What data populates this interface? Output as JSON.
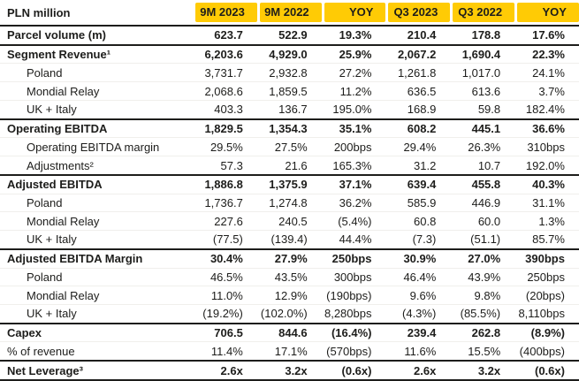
{
  "colors": {
    "accent_yellow": "#FFCB05",
    "text": "#1D1D1B",
    "section_line": "#1D1D1B"
  },
  "table": {
    "header": {
      "label": "PLN million",
      "columns": [
        "9M 2023",
        "9M 2022",
        "YOY",
        "Q3 2023",
        "Q3 2022",
        "YOY"
      ]
    },
    "rows": [
      {
        "label": "Parcel volume (m)",
        "values": [
          "623.7",
          "522.9",
          "19.3%",
          "210.4",
          "178.8",
          "17.6%"
        ]
      },
      {
        "label": "Segment Revenue¹",
        "values": [
          "6,203.6",
          "4,929.0",
          "25.9%",
          "2,067.2",
          "1,690.4",
          "22.3%"
        ]
      },
      {
        "label": "Poland",
        "values": [
          "3,731.7",
          "2,932.8",
          "27.2%",
          "1,261.8",
          "1,017.0",
          "24.1%"
        ]
      },
      {
        "label": "Mondial Relay",
        "values": [
          "2,068.6",
          "1,859.5",
          "11.2%",
          "636.5",
          "613.6",
          "3.7%"
        ]
      },
      {
        "label": "UK + Italy",
        "values": [
          "403.3",
          "136.7",
          "195.0%",
          "168.9",
          "59.8",
          "182.4%"
        ]
      },
      {
        "label": "Operating EBITDA",
        "values": [
          "1,829.5",
          "1,354.3",
          "35.1%",
          "608.2",
          "445.1",
          "36.6%"
        ]
      },
      {
        "label": "Operating EBITDA margin",
        "values": [
          "29.5%",
          "27.5%",
          "200bps",
          "29.4%",
          "26.3%",
          "310bps"
        ]
      },
      {
        "label": "Adjustments²",
        "values": [
          "57.3",
          "21.6",
          "165.3%",
          "31.2",
          "10.7",
          "192.0%"
        ]
      },
      {
        "label": "Adjusted EBITDA",
        "values": [
          "1,886.8",
          "1,375.9",
          "37.1%",
          "639.4",
          "455.8",
          "40.3%"
        ]
      },
      {
        "label": "Poland",
        "values": [
          "1,736.7",
          "1,274.8",
          "36.2%",
          "585.9",
          "446.9",
          "31.1%"
        ]
      },
      {
        "label": "Mondial Relay",
        "values": [
          "227.6",
          "240.5",
          "(5.4%)",
          "60.8",
          "60.0",
          "1.3%"
        ]
      },
      {
        "label": "UK + Italy",
        "values": [
          "(77.5)",
          "(139.4)",
          "44.4%",
          "(7.3)",
          "(51.1)",
          "85.7%"
        ]
      },
      {
        "label": "Adjusted EBITDA Margin",
        "values": [
          "30.4%",
          "27.9%",
          "250bps",
          "30.9%",
          "27.0%",
          "390bps"
        ]
      },
      {
        "label": "Poland",
        "values": [
          "46.5%",
          "43.5%",
          "300bps",
          "46.4%",
          "43.9%",
          "250bps"
        ]
      },
      {
        "label": "Mondial Relay",
        "values": [
          "11.0%",
          "12.9%",
          "(190bps)",
          "9.6%",
          "9.8%",
          "(20bps)"
        ]
      },
      {
        "label": "UK + Italy",
        "values": [
          "(19.2%)",
          "(102.0%)",
          "8,280bps",
          "(4.3%)",
          "(85.5%)",
          "8,110bps"
        ]
      },
      {
        "label": "Capex",
        "values": [
          "706.5",
          "844.6",
          "(16.4%)",
          "239.4",
          "262.8",
          "(8.9%)"
        ]
      },
      {
        "label": "% of revenue",
        "values": [
          "11.4%",
          "17.1%",
          "(570bps)",
          "11.6%",
          "15.5%",
          "(400bps)"
        ]
      },
      {
        "label": "Net Leverage³",
        "values": [
          "2.6x",
          "3.2x",
          "(0.6x)",
          "2.6x",
          "3.2x",
          "(0.6x)"
        ]
      }
    ]
  }
}
